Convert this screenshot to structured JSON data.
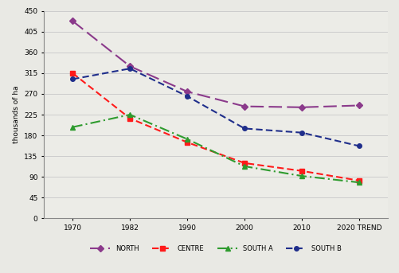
{
  "chart_data": {
    "type": "line",
    "y_label": "thousands of ha",
    "categories": [
      "1970",
      "1982",
      "1990",
      "2000",
      "2010",
      "2020 TREND"
    ],
    "series": [
      {
        "name": "NORTH",
        "color": "#8b3a8b",
        "marker": "diamond",
        "line_style": "longdash",
        "values": [
          428,
          330,
          275,
          243,
          241,
          245
        ]
      },
      {
        "name": "CENTRE",
        "color": "#ff1a1a",
        "marker": "square",
        "line_style": "dashed",
        "values": [
          315,
          217,
          165,
          120,
          103,
          82
        ]
      },
      {
        "name": "SOUTH A",
        "color": "#2e9b2e",
        "marker": "triangle",
        "line_style": "dashdot",
        "values": [
          198,
          225,
          172,
          113,
          92,
          78
        ]
      },
      {
        "name": "SOUTH B",
        "color": "#1f2e8b",
        "marker": "circle",
        "line_style": "dashed",
        "values": [
          302,
          325,
          265,
          195,
          186,
          157
        ]
      }
    ],
    "ylim": [
      0,
      450
    ],
    "yticks": [
      0,
      45,
      90,
      135,
      180,
      225,
      270,
      315,
      360,
      405,
      450
    ],
    "grid": true,
    "legend": "bottom"
  }
}
